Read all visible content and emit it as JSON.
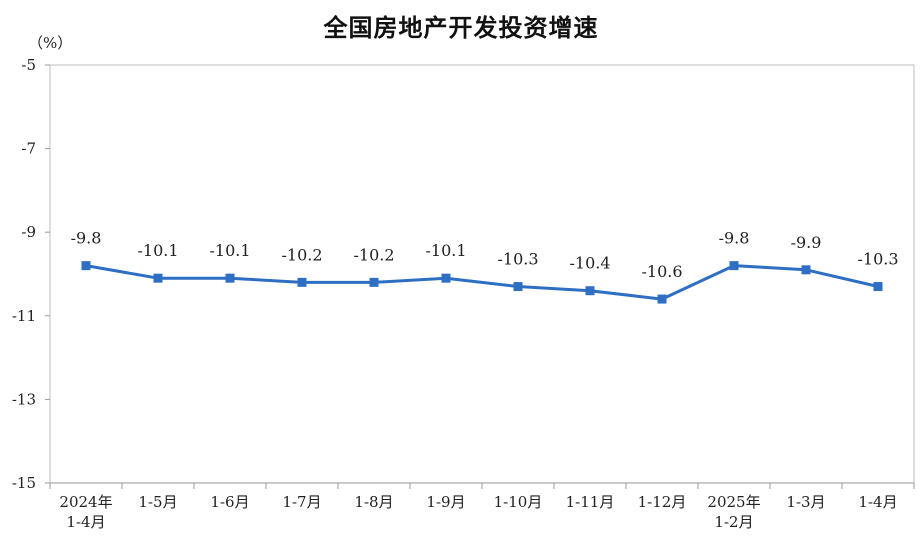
{
  "chart_data": {
    "type": "line",
    "title": "全国房地产开发投资增速",
    "ylabel": "（%）",
    "xlabel": "",
    "categories": [
      [
        "2024年",
        "1-4月"
      ],
      [
        "1-5月"
      ],
      [
        "1-6月"
      ],
      [
        "1-7月"
      ],
      [
        "1-8月"
      ],
      [
        "1-9月"
      ],
      [
        "1-10月"
      ],
      [
        "1-11月"
      ],
      [
        "1-12月"
      ],
      [
        "2025年",
        "1-2月"
      ],
      [
        "1-3月"
      ],
      [
        "1-4月"
      ]
    ],
    "series": [
      {
        "values": [
          -9.8,
          -10.1,
          -10.1,
          -10.2,
          -10.2,
          -10.1,
          -10.3,
          -10.4,
          -10.6,
          -9.8,
          -9.9,
          -10.3
        ]
      }
    ],
    "data_labels": [
      "-9.8",
      "-10.1",
      "-10.1",
      "-10.2",
      "-10.2",
      "-10.1",
      "-10.3",
      "-10.4",
      "-10.6",
      "-9.8",
      "-9.9",
      "-10.3"
    ],
    "ylim": [
      -15,
      -5
    ],
    "yticks": [
      -5,
      -7,
      -9,
      -11,
      -13,
      -15
    ],
    "grid": false,
    "legend": "none",
    "colors": {
      "line": "#2e6fc4",
      "marker": "#2e6fc4",
      "axis": "#999999",
      "frame": "#bfbfbf"
    }
  }
}
